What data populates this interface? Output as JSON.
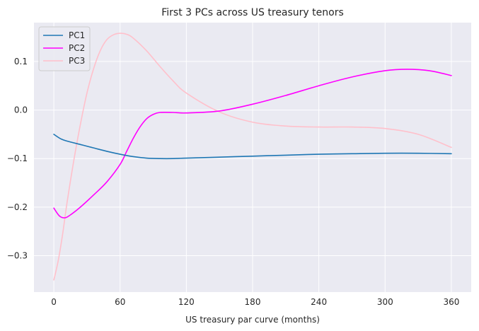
{
  "chart_data": {
    "type": "line",
    "title": "First 3 PCs across US treasury tenors",
    "xlabel": "US treasury par curve (months)",
    "ylabel": "",
    "xlim": [
      -18,
      378
    ],
    "ylim": [
      -0.375,
      0.18
    ],
    "xticks": [
      0,
      60,
      120,
      180,
      240,
      300,
      360
    ],
    "yticks": [
      -0.3,
      -0.2,
      -0.1,
      0.0,
      0.1
    ],
    "ytick_labels": [
      "−0.3",
      "−0.2",
      "−0.1",
      "0.0",
      "0.1"
    ],
    "grid": true,
    "legend": "top-left",
    "background": "#eaeaf2",
    "series": [
      {
        "name": "PC1",
        "color": "#1f77b4",
        "x": [
          0,
          6,
          12,
          24,
          36,
          48,
          60,
          72,
          84,
          96,
          108,
          120,
          150,
          180,
          210,
          240,
          270,
          300,
          330,
          360
        ],
        "y": [
          -0.05,
          -0.059,
          -0.064,
          -0.071,
          -0.078,
          -0.085,
          -0.091,
          -0.096,
          -0.099,
          -0.1,
          -0.1,
          -0.099,
          -0.097,
          -0.095,
          -0.093,
          -0.091,
          -0.09,
          -0.089,
          -0.089,
          -0.09
        ]
      },
      {
        "name": "PC2",
        "color": "#ff00ff",
        "x": [
          0,
          5,
          10,
          15,
          24,
          36,
          48,
          60,
          66,
          72,
          78,
          84,
          90,
          96,
          108,
          120,
          150,
          180,
          210,
          240,
          270,
          300,
          320,
          340,
          360
        ],
        "y": [
          -0.202,
          -0.218,
          -0.222,
          -0.216,
          -0.2,
          -0.175,
          -0.148,
          -0.112,
          -0.085,
          -0.058,
          -0.035,
          -0.018,
          -0.009,
          -0.005,
          -0.005,
          -0.006,
          -0.002,
          0.012,
          0.03,
          0.05,
          0.068,
          0.081,
          0.084,
          0.081,
          0.071
        ]
      },
      {
        "name": "PC3",
        "color": "#ffc0cb",
        "x": [
          0,
          4,
          8,
          12,
          18,
          24,
          30,
          36,
          42,
          48,
          54,
          60,
          66,
          72,
          84,
          96,
          108,
          120,
          150,
          180,
          210,
          240,
          270,
          300,
          330,
          360
        ],
        "y": [
          -0.35,
          -0.31,
          -0.255,
          -0.19,
          -0.105,
          -0.03,
          0.035,
          0.085,
          0.122,
          0.145,
          0.155,
          0.158,
          0.156,
          0.148,
          0.122,
          0.09,
          0.06,
          0.035,
          -0.004,
          -0.025,
          -0.033,
          -0.035,
          -0.035,
          -0.038,
          -0.05,
          -0.077
        ]
      }
    ]
  }
}
